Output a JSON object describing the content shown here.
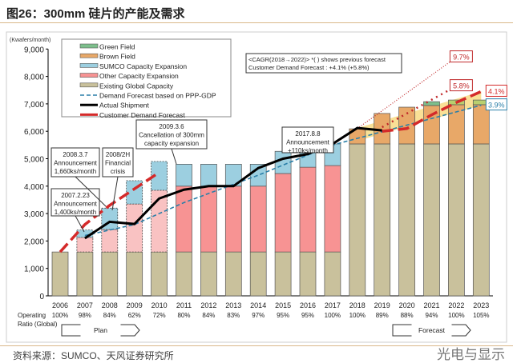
{
  "title": "图26：300mm 硅片的产能及需求",
  "source": "资料来源：SUMCO、天风证券研究所",
  "watermark": "光电与显示",
  "chart_data": {
    "type": "bar",
    "ylabel": "(Kwafers/month)",
    "ylim": [
      0,
      9000
    ],
    "yticks": [
      "0",
      "1,000",
      "2,000",
      "3,000",
      "4,000",
      "5,000",
      "6,000",
      "7,000",
      "8,000",
      "9,000"
    ],
    "categories": [
      "2006",
      "2007",
      "2008",
      "2009",
      "2010",
      "2011",
      "2012",
      "2013",
      "2014",
      "2015",
      "2016",
      "2017",
      "2018",
      "2019",
      "2020",
      "2021",
      "2022",
      "2023"
    ],
    "operating_ratio_label": [
      "Operating",
      "Ratio (Global)"
    ],
    "operating_ratio": [
      "100%",
      "98%",
      "84%",
      "62%",
      "72%",
      "80%",
      "84%",
      "83%",
      "97%",
      "95%",
      "95%",
      "100%",
      "100%",
      "89%",
      "88%",
      "94%",
      "100%",
      "105%"
    ],
    "series": [
      {
        "name": "Existing Global Capacity",
        "color": "#c9c19c",
        "values": [
          1600,
          1600,
          1600,
          1600,
          1600,
          1600,
          1600,
          1600,
          1600,
          1600,
          1600,
          1600,
          5540,
          5540,
          5540,
          5540,
          5540,
          5540
        ]
      },
      {
        "name": "Other Capacity Expansion",
        "color": "#f79393",
        "values": [
          0,
          530,
          820,
          1750,
          2250,
          2400,
          2400,
          2400,
          2400,
          2860,
          3090,
          3150,
          0,
          0,
          0,
          0,
          0,
          0
        ]
      },
      {
        "name": "SUMCO Capacity Expansion",
        "color": "#9ccfe0",
        "values": [
          0,
          270,
          780,
          850,
          1050,
          800,
          800,
          800,
          800,
          810,
          790,
          790,
          0,
          0,
          0,
          0,
          0,
          0
        ]
      },
      {
        "name": "Brown Field",
        "color": "#e8a868",
        "values": [
          0,
          0,
          0,
          0,
          0,
          0,
          0,
          0,
          0,
          0,
          0,
          0,
          550,
          1110,
          1340,
          1400,
          1430,
          1430
        ]
      },
      {
        "name": "Green Field",
        "color": "#7dbf8c",
        "values": [
          0,
          0,
          0,
          0,
          0,
          0,
          0,
          0,
          0,
          0,
          0,
          0,
          0,
          0,
          0,
          140,
          170,
          170
        ]
      }
    ],
    "lines": [
      {
        "name": "Demand Forecast based on PPP-GDP",
        "color": "#2a7fa8",
        "style": "dashed",
        "x": [
          "2007",
          "2009",
          "2011",
          "2014",
          "2017",
          "2023"
        ],
        "values": [
          2200,
          2600,
          3400,
          4400,
          5500,
          6950
        ]
      },
      {
        "name": "Actual Shipment",
        "color": "#000000",
        "style": "solid",
        "x": [
          "2007",
          "2008",
          "2009",
          "2010",
          "2011",
          "2012",
          "2013",
          "2014",
          "2015",
          "2016",
          "2017",
          "2018",
          "2019"
        ],
        "values": [
          2100,
          2700,
          2620,
          3550,
          3870,
          4000,
          4000,
          4660,
          5000,
          5170,
          5540,
          6120,
          6030
        ]
      },
      {
        "name": "Customer Demand Forecast",
        "color": "#d42a2a",
        "style": "long-dash",
        "x": [
          "2006",
          "2007",
          "2008",
          "2009",
          "2010",
          "2019",
          "2020",
          "2021",
          "2022",
          "2023"
        ],
        "values": [
          1600,
          2600,
          3300,
          3900,
          4500,
          6000,
          6100,
          6600,
          7050,
          7450
        ]
      }
    ],
    "previous_forecast_lines": [
      {
        "label": "9.7%",
        "x": [
          "2018",
          "2022"
        ],
        "values": [
          6100,
          8700
        ]
      },
      {
        "label": "5.8%",
        "x": [
          "2019",
          "2022"
        ],
        "values": [
          6150,
          7650
        ]
      }
    ],
    "end_labels": [
      {
        "text": "4.1%",
        "color": "#d42a2a"
      },
      {
        "text": "3.9%",
        "color": "#2a7fa8"
      }
    ],
    "cagr_note": [
      "<CAGR(2018→2022)> *( ) shows previous forecast",
      "Customer Demand Forecast : +4.1% (+5.8%)"
    ],
    "annotations": [
      {
        "lines": [
          "2007.2.23",
          "Announcement",
          "1,400ks/month"
        ]
      },
      {
        "lines": [
          "2008.3.7",
          "Announcement",
          "1,660ks/month"
        ]
      },
      {
        "lines": [
          "2008/2H",
          "Financial",
          "crisis"
        ]
      },
      {
        "lines": [
          "2009.3.6",
          "Cancellation of 300mm",
          "capacity expansion"
        ]
      },
      {
        "lines": [
          "2017.8.8",
          "Announcement",
          "+110ks/month"
        ]
      }
    ],
    "arrows": {
      "plan": "Plan",
      "forecast": "Forecast"
    },
    "legend_placement": "top-left",
    "grid": false
  }
}
